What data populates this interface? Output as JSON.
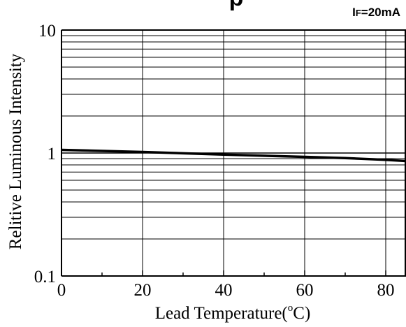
{
  "chart_data": {
    "type": "line",
    "title_fragment": "p",
    "condition_label": "IF=20mA",
    "condition_main": "I",
    "condition_sub": "F",
    "condition_rest": "=20mA",
    "xlabel": "Lead Temperature(",
    "xlabel_degree": "o",
    "xlabel_unit": "C)",
    "ylabel": "Relitive Luminous Intensity",
    "x_scale": "linear",
    "y_scale": "log",
    "xlim": [
      0,
      85
    ],
    "ylim": [
      0.1,
      10
    ],
    "x_ticks": [
      {
        "value": 0,
        "label": "0"
      },
      {
        "value": 20,
        "label": "20"
      },
      {
        "value": 40,
        "label": "40"
      },
      {
        "value": 60,
        "label": "60"
      },
      {
        "value": 80,
        "label": "80"
      }
    ],
    "x_minor_ticks": [
      10,
      30,
      50,
      70
    ],
    "y_ticks": [
      {
        "value": 0.1,
        "label": "0.1"
      },
      {
        "value": 1,
        "label": "1"
      },
      {
        "value": 10,
        "label": "10"
      }
    ],
    "grid": true,
    "line_color": "#000000",
    "series": [
      {
        "x": [
          0,
          20,
          40,
          60,
          70,
          80,
          85
        ],
        "y": [
          1.06,
          1.02,
          0.97,
          0.93,
          0.91,
          0.88,
          0.86
        ]
      }
    ]
  }
}
